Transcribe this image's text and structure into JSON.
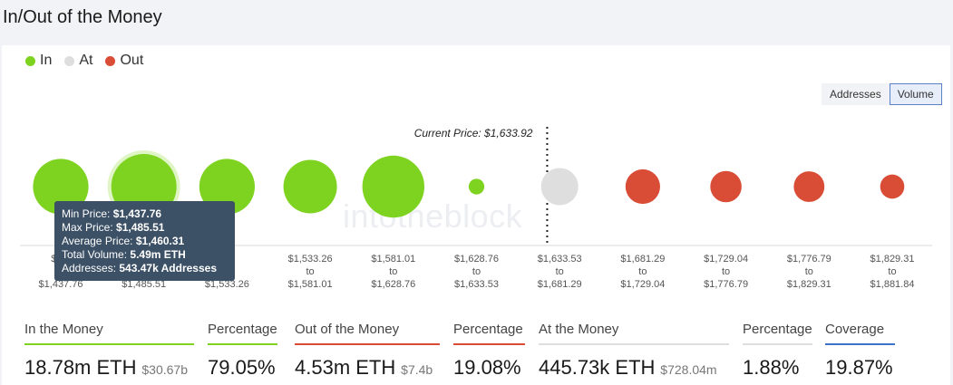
{
  "title": "In/Out of the Money",
  "legend": [
    {
      "label": "In",
      "color": "#7ed321"
    },
    {
      "label": "At",
      "color": "#dedede"
    },
    {
      "label": "Out",
      "color": "#d94c35"
    }
  ],
  "toggle": {
    "addresses_label": "Addresses",
    "volume_label": "Volume",
    "active": "Volume"
  },
  "watermark": "intotheblock",
  "current_price_label": "Current Price: $1,633.92",
  "tooltip": {
    "min_label": "Min Price:",
    "min_value": "$1,437.76",
    "max_label": "Max Price:",
    "max_value": "$1,485.51",
    "avg_label": "Average Price:",
    "avg_value": "$1,460.31",
    "vol_label": "Total Volume:",
    "vol_value": "5.49m ETH",
    "addr_label": "Addresses:",
    "addr_value": "543.47k Addresses"
  },
  "chart_data": {
    "type": "bubble",
    "title": "In/Out of the Money",
    "current_price": 1633.92,
    "ranges": [
      {
        "from": "$1,3",
        "sep": "",
        "to": "$1,437.76",
        "status": "in",
        "relative_size": 0.85
      },
      {
        "from": "",
        "sep": "",
        "to": "$1,485.51",
        "status": "in",
        "relative_size": 1.0
      },
      {
        "from": ".51",
        "sep": "",
        "to": "$1,533.26",
        "status": "in",
        "relative_size": 0.85
      },
      {
        "from": "$1,533.26",
        "sep": "to",
        "to": "$1,581.01",
        "status": "in",
        "relative_size": 0.82
      },
      {
        "from": "$1,581.01",
        "sep": "to",
        "to": "$1,628.76",
        "status": "in",
        "relative_size": 0.95
      },
      {
        "from": "$1,628.76",
        "sep": "to",
        "to": "$1,633.53",
        "status": "in",
        "relative_size": 0.24
      },
      {
        "from": "$1,633.53",
        "sep": "to",
        "to": "$1,681.29",
        "status": "at",
        "relative_size": 0.57
      },
      {
        "from": "$1,681.29",
        "sep": "to",
        "to": "$1,729.04",
        "status": "out",
        "relative_size": 0.53
      },
      {
        "from": "$1,729.04",
        "sep": "to",
        "to": "$1,776.79",
        "status": "out",
        "relative_size": 0.48
      },
      {
        "from": "$1,776.79",
        "sep": "to",
        "to": "$1,829.31",
        "status": "out",
        "relative_size": 0.47
      },
      {
        "from": "$1,829.31",
        "sep": "to",
        "to": "$1,881.84",
        "status": "out",
        "relative_size": 0.37
      }
    ]
  },
  "stats": [
    {
      "label": "In the Money",
      "value": "18.78m ETH",
      "sub": "$30.67b",
      "color": "#7ed321"
    },
    {
      "label": "Percentage",
      "value": "79.05%",
      "sub": "",
      "color": "#7ed321"
    },
    {
      "label": "Out of the Money",
      "value": "4.53m ETH",
      "sub": "$7.4b",
      "color": "#d94c35"
    },
    {
      "label": "Percentage",
      "value": "19.08%",
      "sub": "",
      "color": "#d94c35"
    },
    {
      "label": "At the Money",
      "value": "445.73k ETH",
      "sub": "$728.04m",
      "color": "#dedede"
    },
    {
      "label": "Percentage",
      "value": "1.88%",
      "sub": "",
      "color": "#dedede"
    },
    {
      "label": "Coverage",
      "value": "19.87%",
      "sub": "",
      "color": "#3d72c8"
    }
  ]
}
